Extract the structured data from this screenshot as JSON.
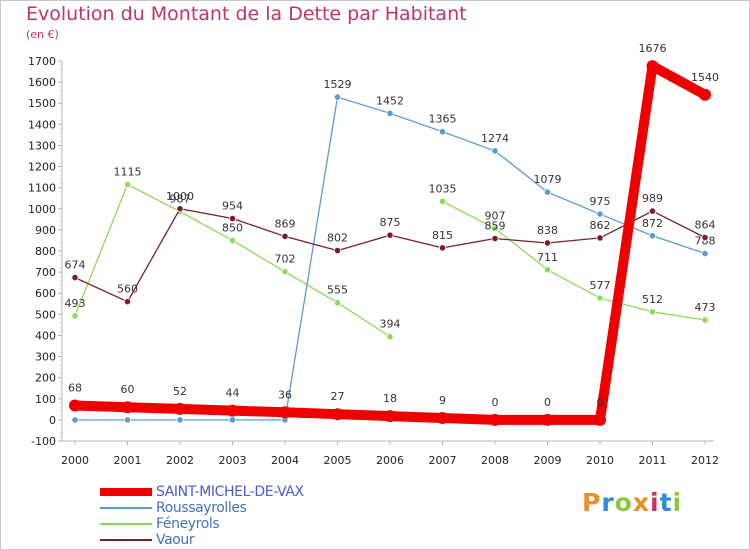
{
  "title": "Evolution du Montant de la Dette par Habitant",
  "subtitle": "(en €)",
  "brand": {
    "text": "Proxiti",
    "colors": [
      "#e8902a",
      "#2a8fd6",
      "#8fc63f",
      "#e8902a",
      "#c4326b",
      "#2a8fd6",
      "#8fc63f"
    ]
  },
  "chart_data": {
    "type": "line",
    "x": [
      "2000",
      "2001",
      "2002",
      "2003",
      "2004",
      "2005",
      "2006",
      "2007",
      "2008",
      "2009",
      "2010",
      "2011",
      "2012"
    ],
    "ylim": [
      -100,
      1700
    ],
    "yticks": [
      "-100",
      "0",
      "100",
      "200",
      "300",
      "400",
      "500",
      "600",
      "700",
      "800",
      "900",
      "1000",
      "1100",
      "1200",
      "1300",
      "1400",
      "1500",
      "1600",
      "1700"
    ],
    "grid": false,
    "legend_position": "bottom-left",
    "series": [
      {
        "name": "SAINT-MICHEL-DE-VAX",
        "color": "#ee0000",
        "emphasis": true,
        "values": [
          68,
          60,
          52,
          44,
          36,
          27,
          18,
          9,
          0,
          0,
          0,
          1676,
          1540
        ],
        "labels": [
          "68",
          "60",
          "52",
          "44",
          "36",
          "27",
          "18",
          "9",
          "0",
          "0",
          "0",
          "1676",
          "1540"
        ]
      },
      {
        "name": "Roussayrolles",
        "color": "#5b9bd5",
        "legend_color": "#4472c4",
        "values": [
          0,
          0,
          0,
          0,
          0,
          1529,
          1452,
          1365,
          1274,
          1079,
          975,
          872,
          788
        ],
        "labels": [
          "",
          "",
          "",
          "",
          "",
          "1529",
          "1452",
          "1365",
          "1274",
          "1079",
          "975",
          "872",
          "788"
        ]
      },
      {
        "name": "Féneyrols",
        "color": "#8fd95a",
        "legend_color": "#4472c4",
        "values": [
          493,
          1115,
          987,
          850,
          702,
          555,
          394,
          1035,
          907,
          711,
          577,
          512,
          473
        ],
        "labels": [
          "493",
          "1115",
          "987",
          "850",
          "702",
          "555",
          "394",
          "1035",
          "907",
          "711",
          "577",
          "512",
          "473"
        ],
        "breaks_after": [
          6
        ]
      },
      {
        "name": "Vaour",
        "color": "#7a1f28",
        "legend_color": "#4472c4",
        "values": [
          674,
          560,
          1000,
          954,
          869,
          802,
          875,
          815,
          859,
          838,
          862,
          989,
          864
        ],
        "labels": [
          "674",
          "560",
          "1000",
          "954",
          "869",
          "802",
          "875",
          "815",
          "859",
          "838",
          "862",
          "989",
          "864"
        ]
      }
    ]
  }
}
